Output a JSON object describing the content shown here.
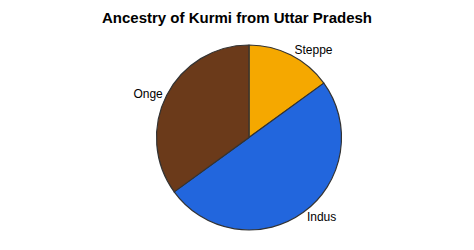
{
  "chart_data": {
    "type": "pie",
    "title": "Ancestry of Kurmi from Uttar Pradesh",
    "categories": [
      "Steppe",
      "Indus",
      "Onge"
    ],
    "values": [
      15,
      50,
      35
    ],
    "colors": [
      "#F5A800",
      "#2266DD",
      "#6B3A1A"
    ]
  }
}
